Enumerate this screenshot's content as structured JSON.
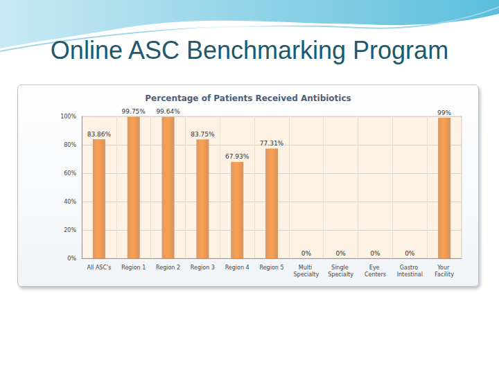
{
  "heading": "Online ASC Benchmarking Program",
  "chart_data": {
    "type": "bar",
    "title": "Percentage of Patients Received Antibiotics",
    "categories": [
      "All ASC's",
      "Region 1",
      "Region 2",
      "Region 3",
      "Region 4",
      "Region 5",
      "Multi Specialty",
      "Single Specialty",
      "Eye Centers",
      "Gastro Intestinal",
      "Your Facility"
    ],
    "values": [
      83.86,
      99.75,
      99.64,
      83.75,
      67.93,
      77.31,
      0,
      0,
      0,
      0,
      99
    ],
    "value_labels": [
      "83.86%",
      "99.75%",
      "99.64%",
      "83.75%",
      "67.93%",
      "77.31%",
      "0%",
      "0%",
      "0%",
      "0%",
      "99%"
    ],
    "color": "#c7773a",
    "ylim": [
      0,
      100
    ],
    "yticks": [
      {
        "value": 0,
        "label": "0%"
      },
      {
        "value": 20,
        "label": "20%"
      },
      {
        "value": 40,
        "label": "40%"
      },
      {
        "value": 60,
        "label": "60%"
      },
      {
        "value": 80,
        "label": "80%"
      },
      {
        "value": 100,
        "label": "100%"
      }
    ],
    "grid": true,
    "data_labels": true
  }
}
